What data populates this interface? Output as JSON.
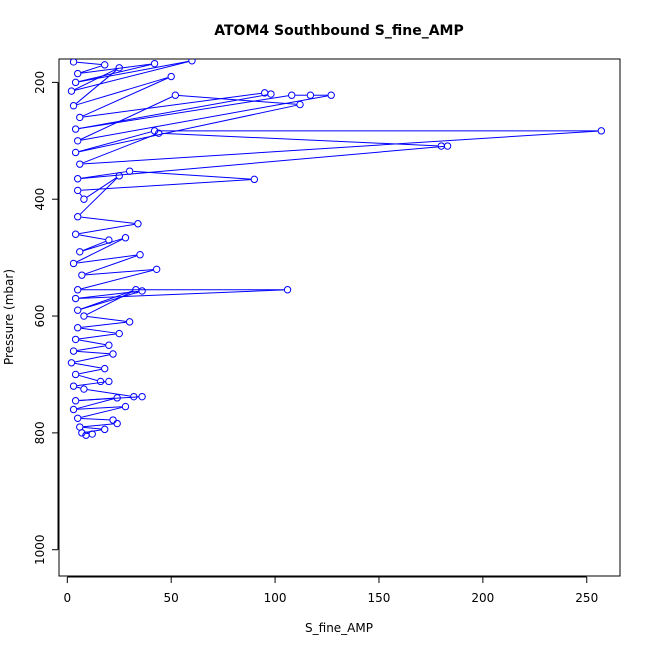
{
  "chart_data": {
    "type": "line",
    "title": "ATOM4 Southbound S_fine_AMP",
    "xlabel": "S_fine_AMP",
    "ylabel": "Pressure (mbar)",
    "xlim": [
      -4,
      266
    ],
    "ylim": [
      160,
      1045
    ],
    "y_reversed": true,
    "grid": false,
    "legend": "none",
    "x_ticks": [
      0,
      50,
      100,
      150,
      200,
      250
    ],
    "x_tick_labels": [
      "0",
      "50",
      "100",
      "150",
      "200",
      "250"
    ],
    "y_ticks": [
      200,
      400,
      600,
      800,
      1000
    ],
    "y_tick_labels": [
      "200",
      "400",
      "600",
      "800",
      "1000"
    ],
    "color": "#0000ff",
    "series": [
      {
        "points": [
          [
            3,
            165
          ],
          [
            18,
            170
          ],
          [
            5,
            185
          ],
          [
            42,
            168
          ],
          [
            4,
            200
          ],
          [
            60,
            163
          ],
          [
            2,
            215
          ],
          [
            25,
            175
          ],
          [
            3,
            240
          ],
          [
            50,
            190
          ],
          [
            6,
            260
          ],
          [
            95,
            218
          ],
          [
            98,
            220
          ],
          [
            4,
            280
          ],
          [
            108,
            222
          ],
          [
            117,
            222
          ],
          [
            127,
            222
          ],
          [
            5,
            300
          ],
          [
            52,
            222
          ],
          [
            112,
            238
          ],
          [
            4,
            320
          ],
          [
            42,
            283
          ],
          [
            257,
            283
          ],
          [
            6,
            340
          ],
          [
            44,
            287
          ],
          [
            180,
            309
          ],
          [
            183,
            309
          ],
          [
            5,
            365
          ],
          [
            30,
            352
          ],
          [
            90,
            366
          ],
          [
            5,
            385
          ],
          [
            8,
            400
          ],
          [
            25,
            360
          ],
          [
            5,
            430
          ],
          [
            34,
            442
          ],
          [
            4,
            460
          ],
          [
            20,
            470
          ],
          [
            6,
            490
          ],
          [
            28,
            466
          ],
          [
            3,
            510
          ],
          [
            35,
            495
          ],
          [
            7,
            530
          ],
          [
            43,
            520
          ],
          [
            5,
            555
          ],
          [
            106,
            555
          ],
          [
            4,
            570
          ],
          [
            36,
            557
          ],
          [
            5,
            590
          ],
          [
            33,
            555
          ],
          [
            8,
            600
          ],
          [
            30,
            610
          ],
          [
            5,
            620
          ],
          [
            25,
            630
          ],
          [
            4,
            640
          ],
          [
            20,
            650
          ],
          [
            3,
            660
          ],
          [
            22,
            665
          ],
          [
            2,
            680
          ],
          [
            18,
            690
          ],
          [
            4,
            700
          ],
          [
            16,
            712
          ],
          [
            20,
            712
          ],
          [
            3,
            720
          ],
          [
            8,
            725
          ],
          [
            32,
            738
          ],
          [
            36,
            738
          ],
          [
            4,
            745
          ],
          [
            24,
            740
          ],
          [
            3,
            760
          ],
          [
            28,
            755
          ],
          [
            5,
            775
          ],
          [
            22,
            778
          ],
          [
            24,
            784
          ],
          [
            6,
            790
          ],
          [
            18,
            794
          ],
          [
            7,
            800
          ],
          [
            12,
            802
          ],
          [
            9,
            804
          ]
        ]
      }
    ]
  }
}
